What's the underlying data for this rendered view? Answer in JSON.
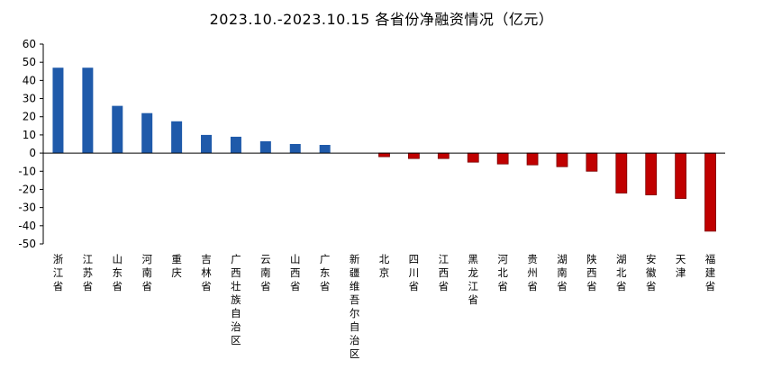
{
  "chart_data": {
    "type": "bar",
    "title": "2023.10.-2023.10.15 各省份净融资情况（亿元）",
    "xlabel": "",
    "ylabel": "",
    "ylim": [
      -50,
      60
    ],
    "yticks": [
      60,
      50,
      40,
      30,
      20,
      10,
      0,
      -10,
      -20,
      -30,
      -40,
      -50
    ],
    "grid": false,
    "legend": "none",
    "positive_color": "#1F5AAA",
    "negative_color": "#C00000",
    "categories": [
      "浙江省",
      "江苏省",
      "山东省",
      "河南省",
      "重庆",
      "吉林省",
      "广西壮族自治区",
      "云南省",
      "山西省",
      "广东省",
      "新疆维吾尔自治区",
      "北京",
      "四川省",
      "江西省",
      "黑龙江省",
      "河北省",
      "贵州省",
      "湖南省",
      "陕西省",
      "湖北省",
      "安徽省",
      "天津",
      "福建省"
    ],
    "values": [
      47,
      47,
      26,
      22,
      17.5,
      10,
      9,
      6.5,
      5,
      4.5,
      0,
      -2,
      -3,
      -3,
      -5,
      -6,
      -6.5,
      -7.5,
      -10,
      -22,
      -23,
      -25,
      -43
    ]
  }
}
